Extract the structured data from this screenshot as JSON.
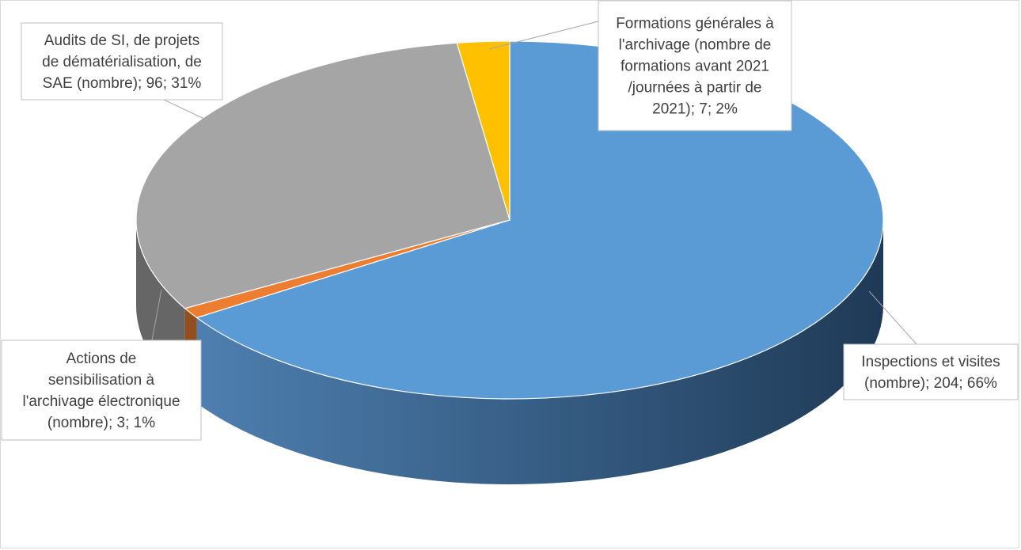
{
  "chart_data": {
    "type": "pie",
    "title": "",
    "legend": "none",
    "style": "3d",
    "slices": [
      {
        "category": "Inspections et visites (nombre)",
        "value": 204,
        "percent": "66%",
        "color": "#5b9bd5",
        "label_lines": [
          "Inspections et visites",
          "(nombre); 204; 66%"
        ]
      },
      {
        "category": "Actions de sensibilisation à l'archivage électronique (nombre)",
        "value": 3,
        "percent": "1%",
        "color": "#ed7d31",
        "label_lines": [
          "Actions de",
          "sensibilisation à",
          "l'archivage électronique",
          "(nombre); 3; 1%"
        ]
      },
      {
        "category": "Audits de SI, de projets de dématérialisation, de SAE (nombre)",
        "value": 96,
        "percent": "31%",
        "color": "#a5a5a5",
        "label_lines": [
          "Audits de SI, de projets",
          "de dématérialisation, de",
          "SAE (nombre); 96; 31%"
        ]
      },
      {
        "category": "Formations générales à l'archivage (nombre de formations avant 2021 /journées à partir de 2021)",
        "value": 7,
        "percent": "2%",
        "color": "#ffc000",
        "label_lines": [
          "Formations générales à",
          "l'archivage (nombre de",
          "formations avant 2021",
          "/journées à partir de",
          "2021); 7; 2%"
        ]
      }
    ]
  }
}
